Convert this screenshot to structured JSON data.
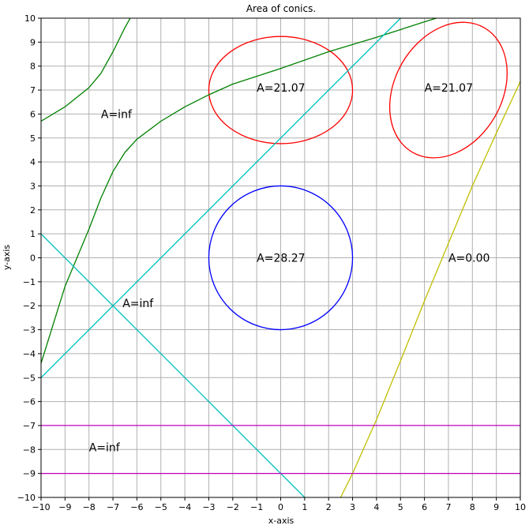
{
  "chart_data": {
    "type": "line",
    "title": "Area of conics.",
    "xlabel": "x-axis",
    "ylabel": "y-axis",
    "xlim": [
      -10,
      10
    ],
    "ylim": [
      -10,
      10
    ],
    "grid": true,
    "x_ticks": [
      "−10",
      "−9",
      "−8",
      "−7",
      "−6",
      "−5",
      "−4",
      "−3",
      "−2",
      "−1",
      "0",
      "1",
      "2",
      "3",
      "4",
      "5",
      "6",
      "7",
      "8",
      "9",
      "10"
    ],
    "y_ticks": [
      "−10",
      "−9",
      "−8",
      "−7",
      "−6",
      "−5",
      "−4",
      "−3",
      "−2",
      "−1",
      "0",
      "1",
      "2",
      "3",
      "4",
      "5",
      "6",
      "7",
      "8",
      "9",
      "10"
    ],
    "series": [
      {
        "shape": "circle",
        "color": "#0000ff",
        "cx": 0,
        "cy": 0,
        "r": 3
      },
      {
        "shape": "ellipse",
        "color": "#ff0000",
        "cx": 0,
        "cy": 7,
        "rx": 3,
        "ry": 2.236,
        "rotation_deg": 0
      },
      {
        "shape": "ellipse",
        "color": "#ff0000",
        "cx": 7,
        "cy": 7,
        "rx": 3,
        "ry": 2.236,
        "rotation_deg": 60
      },
      {
        "shape": "parabola",
        "color": "#bfbf00",
        "x": [
          2.5,
          3,
          4,
          5,
          6,
          7,
          8,
          9,
          10
        ],
        "y": [
          -10,
          -9,
          -6.75,
          -4.3,
          -1.8,
          0.6,
          3.0,
          5.2,
          7.35
        ]
      },
      {
        "shape": "hyperbola-branch",
        "color": "#008000",
        "x": [
          -10,
          -9,
          -8,
          -7.5,
          -7,
          -6.5,
          -6,
          -5,
          -4,
          -3,
          -2,
          0,
          2,
          4,
          6,
          6.5
        ],
        "y": [
          5.7,
          6.3,
          7.1,
          7.7,
          8.6,
          9.6,
          10.5,
          null,
          null,
          null,
          null,
          null,
          null,
          null,
          null,
          null
        ]
      },
      {
        "shape": "hyperbola-branch",
        "color": "#008000",
        "x": [
          -10,
          -9,
          -8,
          -7.5,
          -7,
          -6.5,
          -6,
          -5,
          -4,
          -3,
          -2,
          0,
          2,
          4,
          6,
          6.5
        ],
        "y": [
          -4.4,
          -1.2,
          1.2,
          2.5,
          3.6,
          4.4,
          4.95,
          5.7,
          6.3,
          6.8,
          7.25,
          7.9,
          8.6,
          9.2,
          9.85,
          10
        ]
      },
      {
        "shape": "line",
        "color": "#00bfbf",
        "x": [
          -10,
          5
        ],
        "y": [
          -5,
          10
        ]
      },
      {
        "shape": "line",
        "color": "#00bfbf",
        "x": [
          -10,
          1
        ],
        "y": [
          1,
          -10
        ]
      },
      {
        "shape": "line",
        "color": "#bf00bf",
        "x": [
          -10,
          10
        ],
        "y": [
          -7,
          -7
        ]
      },
      {
        "shape": "line",
        "color": "#bf00bf",
        "x": [
          -10,
          10
        ],
        "y": [
          -9,
          -9
        ]
      }
    ],
    "annotations": [
      {
        "text": "A=inf",
        "x": -7.5,
        "y": 6.0
      },
      {
        "text": "A=21.07",
        "x": -1.0,
        "y": 7.1
      },
      {
        "text": "A=21.07",
        "x": 6.0,
        "y": 7.1
      },
      {
        "text": "A=28.27",
        "x": -1.0,
        "y": 0.0
      },
      {
        "text": "A=0.00",
        "x": 7.0,
        "y": 0.0
      },
      {
        "text": "A=inf",
        "x": -6.6,
        "y": -1.9
      },
      {
        "text": "A=inf",
        "x": -8.0,
        "y": -7.9
      }
    ]
  }
}
